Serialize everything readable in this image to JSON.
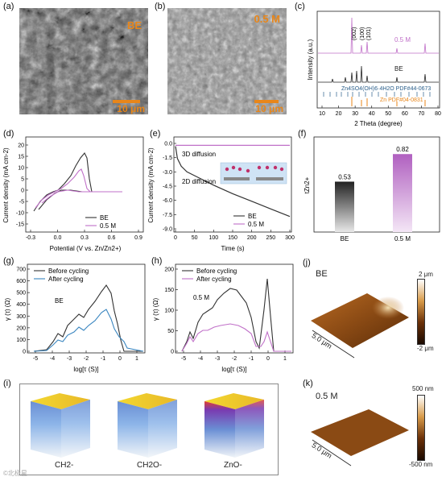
{
  "panels": {
    "a": {
      "label": "(a)",
      "tag": "BE",
      "scale": "10 μm"
    },
    "b": {
      "label": "(b)",
      "tag": "0.5 M",
      "scale": "10 μm"
    },
    "c": {
      "label": "(c)"
    },
    "d": {
      "label": "(d)"
    },
    "e": {
      "label": "(e)"
    },
    "f": {
      "label": "(f)"
    },
    "g": {
      "label": "(g)"
    },
    "h": {
      "label": "(h)"
    },
    "i": {
      "label": "(i)"
    },
    "j": {
      "label": "(j)",
      "title": "BE",
      "cb_top": "2 μm",
      "cb_bottom": "-2 μm",
      "size": "5.0 μm"
    },
    "k": {
      "label": "(k)",
      "title": "0.5 M",
      "cb_top": "500 nm",
      "cb_bottom": "-500 nm",
      "size": "5.0 μm"
    }
  },
  "colors": {
    "be": "#333333",
    "m05": "#c070c8",
    "after": "#3a86c0",
    "zn": "#e8861a",
    "ref": "#2a5e8a"
  },
  "chart_data": [
    {
      "id": "c",
      "type": "line",
      "xlabel": "2 Theta (degree)",
      "ylabel": "Intensity (a.u.)",
      "xticks": [
        "10",
        "20",
        "30",
        "40",
        "50",
        "60",
        "70",
        "80"
      ],
      "xlim": [
        10,
        80
      ],
      "peak_labels": [
        "(002)",
        "(100)",
        "(101)"
      ],
      "series": [
        {
          "name": "0.5 M"
        },
        {
          "name": "BE"
        }
      ],
      "references": [
        "Zn4SO4(OH)6·4H2O  PDF#44-0673",
        "Zn PDF#04-0831"
      ]
    },
    {
      "id": "d",
      "type": "line",
      "xlabel": "Potential (V vs. Zn/Zn2+)",
      "ylabel": "Current density (mA cm-2)",
      "xticks": [
        "-0.3",
        "0.0",
        "0.3",
        "0.6",
        "0.9"
      ],
      "yticks": [
        "20",
        "15",
        "10",
        "5",
        "0",
        "-5",
        "-10",
        "-15"
      ],
      "xlim": [
        -0.3,
        0.9
      ],
      "ylim": [
        -16,
        22
      ],
      "series": [
        {
          "name": "BE"
        },
        {
          "name": "0.5 M"
        }
      ]
    },
    {
      "id": "e",
      "type": "line",
      "xlabel": "Time (s)",
      "ylabel": "Current density (mA cm-2)",
      "xticks": [
        "0",
        "50",
        "100",
        "150",
        "200",
        "250",
        "300"
      ],
      "yticks": [
        "0.0",
        "-1.5",
        "-3.0",
        "-4.5",
        "-6.0",
        "-7.5",
        "-9.0"
      ],
      "xlim": [
        0,
        300
      ],
      "ylim": [
        -9.0,
        0.5
      ],
      "annotations": [
        "3D diffusion",
        "2D diffusion"
      ],
      "series": [
        {
          "name": "BE",
          "x": [
            0,
            5,
            15,
            30,
            60,
            100,
            150,
            200,
            250,
            300
          ],
          "y": [
            -0.3,
            -1.6,
            -2.4,
            -3.0,
            -3.6,
            -4.4,
            -5.3,
            -6.1,
            -6.9,
            -7.7
          ]
        },
        {
          "name": "0.5 M",
          "x": [
            0,
            300
          ],
          "y": [
            -0.2,
            -0.2
          ]
        }
      ]
    },
    {
      "id": "f",
      "type": "bar",
      "ylabel": "tZn2+",
      "categories": [
        "BE",
        "0.5 M"
      ],
      "values": [
        0.53,
        0.82
      ],
      "value_labels": [
        "0.53",
        "0.82"
      ],
      "ylim": [
        0,
        1.0
      ]
    },
    {
      "id": "g",
      "type": "line",
      "xlabel": "log[τ (S)]",
      "ylabel": "γ (τ) (Ω)",
      "tag": "BE",
      "xticks": [
        "-5",
        "-4",
        "-3",
        "-2",
        "-1",
        "0",
        "1"
      ],
      "yticks": [
        "0",
        "100",
        "200",
        "300",
        "400",
        "500",
        "600",
        "700"
      ],
      "xlim": [
        -5.5,
        1.5
      ],
      "ylim": [
        0,
        720
      ],
      "series": [
        {
          "name": "Before cycling"
        },
        {
          "name": "After cycling"
        }
      ]
    },
    {
      "id": "h",
      "type": "line",
      "xlabel": "log[τ (S)]",
      "ylabel": "γ (τ) (Ω)",
      "tag": "0.5 M",
      "xticks": [
        "-5",
        "-4",
        "-3",
        "-2",
        "-1",
        "0",
        "1"
      ],
      "yticks": [
        "0",
        "50",
        "100",
        "150",
        "200"
      ],
      "xlim": [
        -5.5,
        1.5
      ],
      "ylim": [
        0,
        200
      ],
      "series": [
        {
          "name": "Before cycling"
        },
        {
          "name": "After cycling"
        }
      ]
    }
  ],
  "tof": {
    "cubes": [
      "CH2-",
      "CH2O-",
      "ZnO-"
    ]
  },
  "watermark": "©北极星"
}
